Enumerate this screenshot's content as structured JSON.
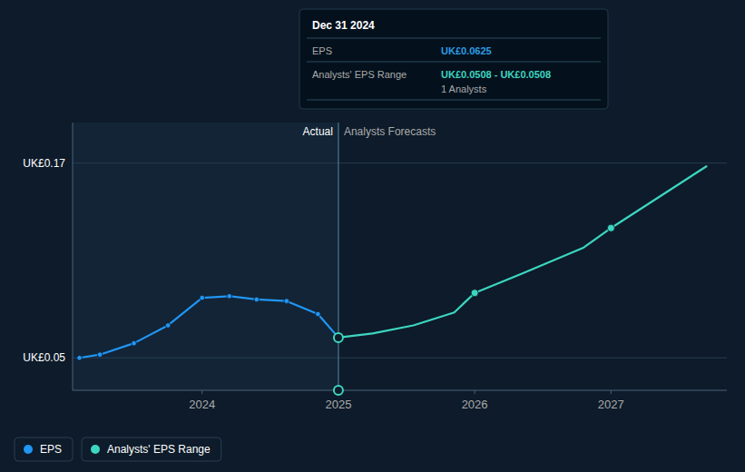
{
  "chart_data": {
    "type": "line",
    "xlim": [
      2023.05,
      2027.85
    ],
    "xticks": [
      2024,
      2025,
      2026,
      2027
    ],
    "ylim": [
      0.03,
      0.195
    ],
    "yticks": [
      {
        "value": 0.05,
        "label": "UK£0.05"
      },
      {
        "value": 0.17,
        "label": "UK£0.17"
      }
    ],
    "grid": true,
    "legend": "bottom-left",
    "series": [
      {
        "name": "EPS",
        "type": "line",
        "color": "#2196f3",
        "marker": "circle",
        "x": [
          2023.1,
          2023.25,
          2023.5,
          2023.75,
          2024.0,
          2024.2,
          2024.4,
          2024.62,
          2024.85,
          2025.0
        ],
        "values": [
          0.05,
          0.052,
          0.059,
          0.07,
          0.087,
          0.088,
          0.086,
          0.085,
          0.077,
          0.0625
        ]
      },
      {
        "name": "Analysts' EPS Range",
        "type": "line",
        "color": "#3dd6c0",
        "x": [
          2025.0,
          2025.25,
          2025.55,
          2025.85,
          2026.0,
          2026.35,
          2026.8,
          2027.0,
          2027.7
        ],
        "values": [
          0.0625,
          0.065,
          0.07,
          0.078,
          0.09,
          0.102,
          0.118,
          0.13,
          0.168
        ]
      },
      {
        "type": "scatter",
        "color": "#3dd6c0",
        "marker": "circle",
        "x": [
          2025.0,
          2026.0,
          2027.0
        ],
        "values": [
          0.0625,
          0.09,
          0.13
        ]
      },
      {
        "type": "scatter",
        "color": "#3dd6c0",
        "marker": "open-circle",
        "x": [
          2025.0,
          2025.0
        ],
        "values": [
          0.0625,
          0.03
        ]
      }
    ],
    "divider": {
      "x": 2025.0,
      "left_label": "Actual",
      "right_label": "Analysts Forecasts"
    },
    "tooltip": {
      "title": "Dec 31 2024",
      "rows": [
        {
          "label": "EPS",
          "value": "UK£0.0625",
          "color": "#2e9de4"
        },
        {
          "label": "Analysts' EPS Range",
          "value": "UK£0.0508 - UK£0.0508",
          "color": "#3dd6c0",
          "note": "1 Analysts"
        }
      ]
    }
  }
}
